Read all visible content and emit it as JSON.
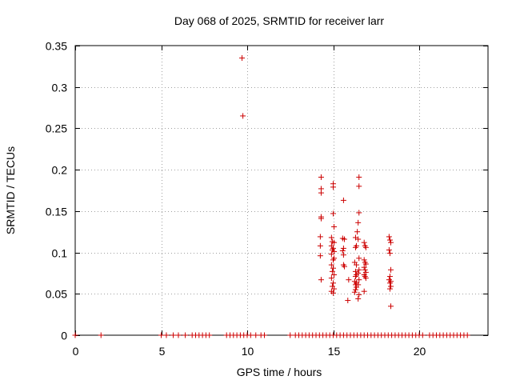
{
  "chart_data": {
    "type": "scatter",
    "title": "Day 068 of 2025, SRMTID for receiver larr",
    "xlabel": "GPS time / hours",
    "ylabel": "SRMTID / TECUs",
    "xlim": [
      0,
      24
    ],
    "ylim": [
      0,
      0.35
    ],
    "xticks": [
      0,
      5,
      10,
      15,
      20
    ],
    "yticks": [
      0,
      0.05,
      0.1,
      0.15,
      0.2,
      0.25,
      0.3,
      0.35
    ],
    "xtick_labels": [
      "0",
      "5",
      "10",
      "15",
      "20"
    ],
    "ytick_labels": [
      "0",
      "0.05",
      "0.1",
      "0.15",
      "0.2",
      "0.25",
      "0.3",
      "0.35"
    ],
    "grid": true,
    "marker": "plus",
    "marker_color": "#cc0000",
    "zero_value_times": [
      0,
      1.5,
      5.0,
      5.3,
      5.7,
      6.0,
      6.4,
      6.8,
      7.0,
      7.2,
      7.4,
      7.6,
      7.8,
      8.8,
      9.0,
      9.2,
      9.4,
      9.6,
      9.8,
      10.0,
      10.2,
      10.5,
      10.8,
      11.0,
      12.5,
      12.8,
      13.0,
      13.2,
      13.4,
      13.6,
      13.8,
      14.0,
      14.2,
      14.4,
      14.6,
      14.8,
      15.0,
      15.2,
      15.4,
      15.6,
      15.8,
      16.0,
      16.2,
      16.4,
      16.6,
      16.8,
      17.0,
      17.2,
      17.4,
      17.6,
      17.8,
      18.0,
      18.2,
      18.4,
      18.6,
      18.8,
      19.0,
      19.2,
      19.4,
      19.6,
      19.8,
      20.0,
      20.2,
      20.6,
      20.8,
      21.0,
      21.2,
      21.4,
      21.6,
      21.8,
      22.0,
      22.2,
      22.4,
      22.6,
      22.8
    ],
    "points": [
      [
        9.7,
        0.335
      ],
      [
        9.75,
        0.265
      ],
      [
        14.3,
        0.191
      ],
      [
        14.3,
        0.177
      ],
      [
        14.3,
        0.172
      ],
      [
        14.3,
        0.143
      ],
      [
        14.3,
        0.141
      ],
      [
        14.25,
        0.119
      ],
      [
        14.25,
        0.108
      ],
      [
        14.25,
        0.096
      ],
      [
        14.3,
        0.067
      ],
      [
        15.0,
        0.183
      ],
      [
        15.0,
        0.179
      ],
      [
        15.0,
        0.147
      ],
      [
        15.05,
        0.131
      ],
      [
        14.9,
        0.118
      ],
      [
        14.95,
        0.113
      ],
      [
        15.05,
        0.112
      ],
      [
        14.9,
        0.108
      ],
      [
        15.0,
        0.105
      ],
      [
        14.95,
        0.103
      ],
      [
        15.05,
        0.101
      ],
      [
        14.9,
        0.098
      ],
      [
        15.05,
        0.093
      ],
      [
        15.0,
        0.091
      ],
      [
        14.9,
        0.085
      ],
      [
        15.0,
        0.081
      ],
      [
        14.95,
        0.077
      ],
      [
        15.05,
        0.073
      ],
      [
        14.9,
        0.069
      ],
      [
        15.0,
        0.063
      ],
      [
        14.95,
        0.059
      ],
      [
        15.05,
        0.056
      ],
      [
        14.9,
        0.053
      ],
      [
        15.0,
        0.051
      ],
      [
        15.6,
        0.163
      ],
      [
        15.55,
        0.117
      ],
      [
        15.65,
        0.116
      ],
      [
        15.6,
        0.105
      ],
      [
        15.55,
        0.102
      ],
      [
        15.6,
        0.097
      ],
      [
        15.6,
        0.085
      ],
      [
        15.65,
        0.083
      ],
      [
        15.9,
        0.067
      ],
      [
        15.85,
        0.042
      ],
      [
        16.3,
        0.118
      ],
      [
        16.35,
        0.108
      ],
      [
        16.3,
        0.106
      ],
      [
        16.25,
        0.088
      ],
      [
        16.35,
        0.085
      ],
      [
        16.3,
        0.077
      ],
      [
        16.35,
        0.073
      ],
      [
        16.3,
        0.071
      ],
      [
        16.25,
        0.065
      ],
      [
        16.35,
        0.063
      ],
      [
        16.3,
        0.061
      ],
      [
        16.35,
        0.058
      ],
      [
        16.3,
        0.055
      ],
      [
        16.25,
        0.052
      ],
      [
        16.5,
        0.191
      ],
      [
        16.5,
        0.18
      ],
      [
        16.5,
        0.148
      ],
      [
        16.45,
        0.136
      ],
      [
        16.4,
        0.125
      ],
      [
        16.45,
        0.116
      ],
      [
        16.5,
        0.093
      ],
      [
        16.5,
        0.079
      ],
      [
        16.45,
        0.075
      ],
      [
        16.5,
        0.067
      ],
      [
        16.45,
        0.061
      ],
      [
        16.5,
        0.049
      ],
      [
        16.45,
        0.044
      ],
      [
        16.8,
        0.112
      ],
      [
        16.85,
        0.108
      ],
      [
        16.9,
        0.106
      ],
      [
        16.8,
        0.091
      ],
      [
        16.85,
        0.088
      ],
      [
        16.9,
        0.086
      ],
      [
        16.8,
        0.082
      ],
      [
        16.85,
        0.079
      ],
      [
        16.9,
        0.076
      ],
      [
        16.8,
        0.073
      ],
      [
        16.85,
        0.071
      ],
      [
        16.9,
        0.069
      ],
      [
        16.8,
        0.053
      ],
      [
        18.25,
        0.119
      ],
      [
        18.3,
        0.115
      ],
      [
        18.35,
        0.112
      ],
      [
        18.25,
        0.103
      ],
      [
        18.3,
        0.099
      ],
      [
        18.35,
        0.079
      ],
      [
        18.3,
        0.071
      ],
      [
        18.25,
        0.067
      ],
      [
        18.35,
        0.065
      ],
      [
        18.3,
        0.063
      ],
      [
        18.35,
        0.059
      ],
      [
        18.3,
        0.056
      ],
      [
        18.35,
        0.035
      ]
    ]
  }
}
